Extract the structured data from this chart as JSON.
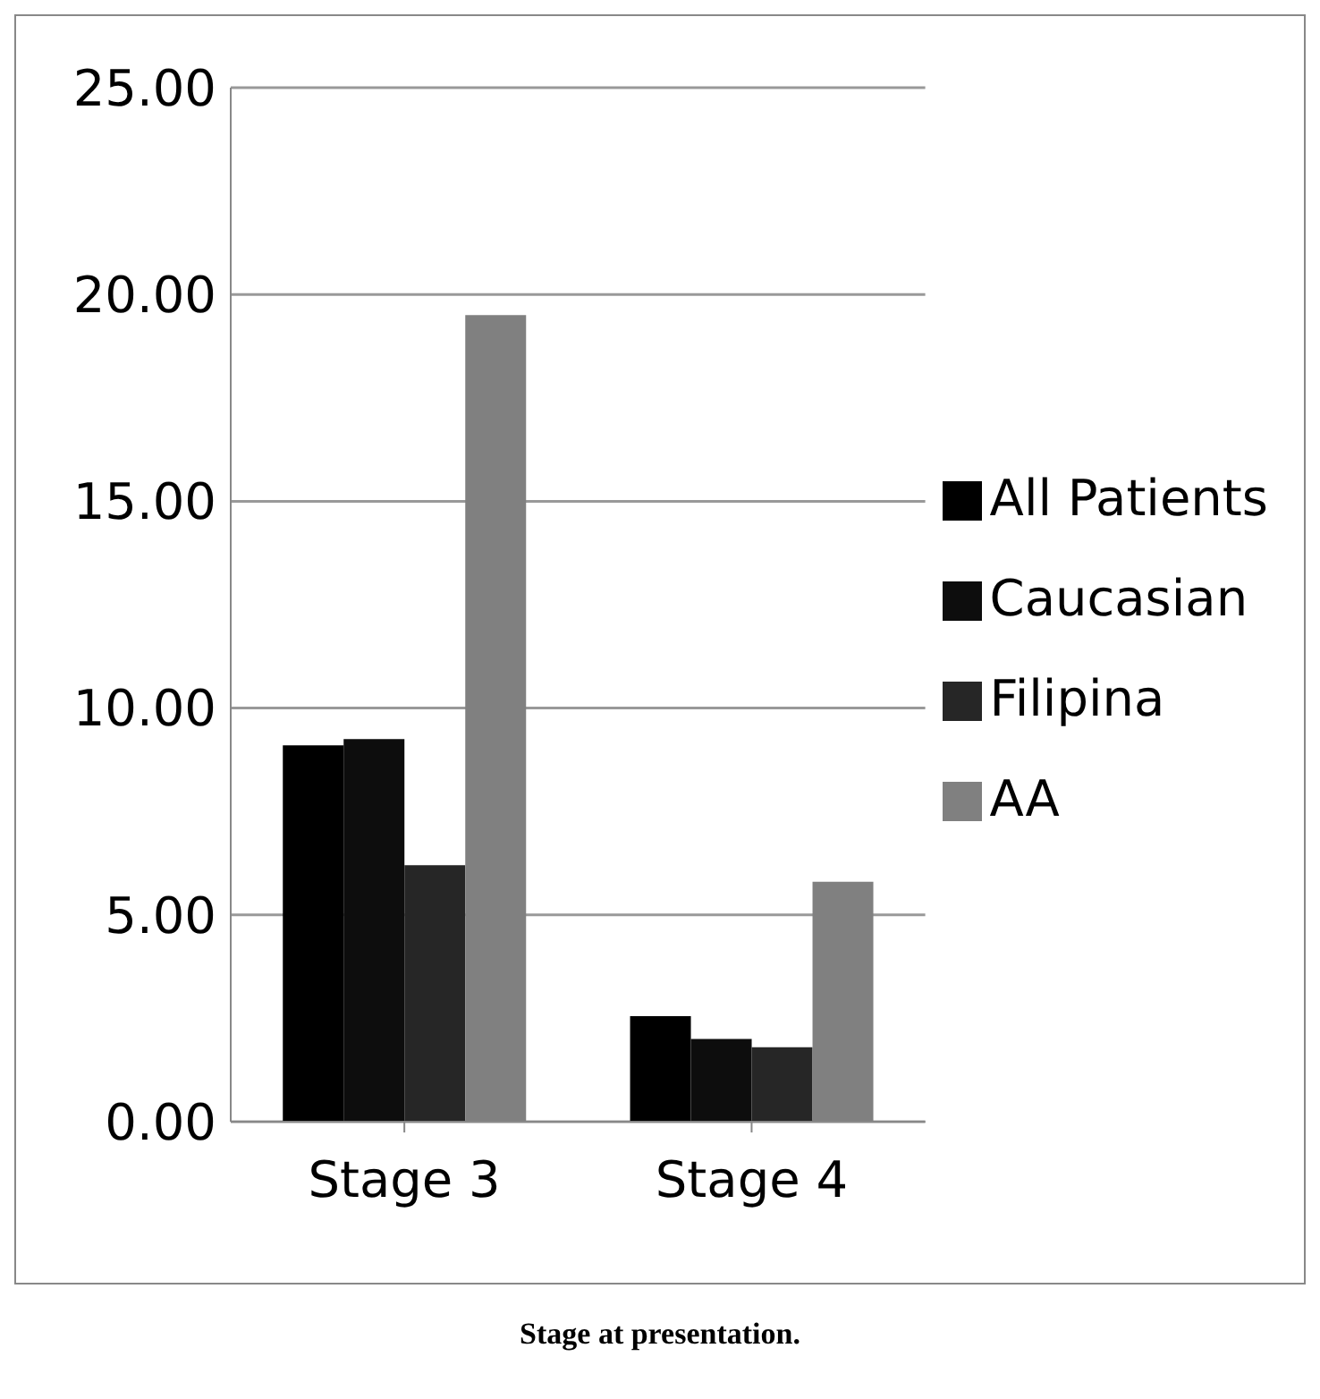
{
  "chart_data": {
    "type": "bar",
    "categories": [
      "Stage 3",
      "Stage 4"
    ],
    "series": [
      {
        "name": "All Patients",
        "color": "#000000",
        "values": [
          9.1,
          2.55
        ]
      },
      {
        "name": "Caucasian",
        "color": "#0d0d0d",
        "values": [
          9.25,
          2.0
        ]
      },
      {
        "name": "Filipina",
        "color": "#262626",
        "values": [
          6.2,
          1.8
        ]
      },
      {
        "name": "AA",
        "color": "#808080",
        "values": [
          19.5,
          5.8
        ]
      }
    ],
    "ylim": [
      0,
      25
    ],
    "yticks": [
      {
        "value": 0,
        "label": "0.00"
      },
      {
        "value": 5,
        "label": "5.00"
      },
      {
        "value": 10,
        "label": "10.00"
      },
      {
        "value": 15,
        "label": "15.00"
      },
      {
        "value": 20,
        "label": "20.00"
      },
      {
        "value": 25,
        "label": "25.00"
      }
    ],
    "grid": "y",
    "legend": "right",
    "annotations": [
      "Stage at presentation."
    ]
  }
}
